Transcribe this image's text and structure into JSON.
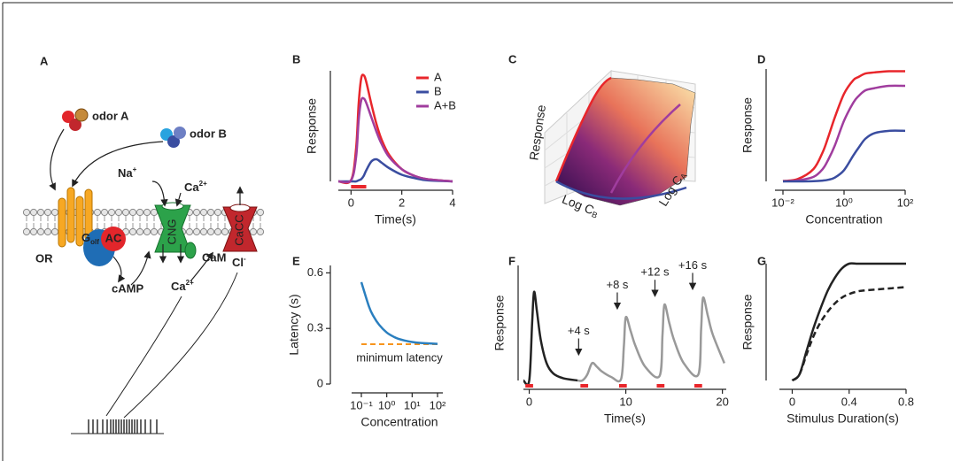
{
  "diagram": {
    "A": {
      "label": "A",
      "odor_a": "odor A",
      "odor_b": "odor B",
      "na": "Na",
      "na_sup": "+",
      "ca_top": "Ca",
      "ca_top_sup": "2+",
      "or": "OR",
      "golf": "G",
      "golf_sub": "olf",
      "ac": "AC",
      "cng": "CNG",
      "cam": "CaM",
      "cacc": "CaCC",
      "camp": "cAMP",
      "ca_bottom": "Ca",
      "ca_bottom_sup": "2+",
      "cl": "Cl",
      "cl_sup": "-"
    },
    "C": {
      "label": "C",
      "z_label": "Response",
      "x_label": "Log C",
      "x_sub": "B",
      "y_label": "Log C",
      "y_sub": "A"
    }
  },
  "chart_data": [
    {
      "type": "line",
      "label": "B",
      "xlabel": "Time(s)",
      "ylabel": "Response",
      "xlim": [
        -0.5,
        4
      ],
      "xticks": [
        0,
        2,
        4
      ],
      "ylim": [
        0,
        1
      ],
      "legend": "upper right",
      "x": [
        -0.5,
        0,
        0.2,
        0.3,
        0.4,
        0.5,
        0.6,
        0.8,
        1,
        1.2,
        1.5,
        2,
        2.5,
        3,
        4
      ],
      "series": [
        {
          "name": "A",
          "color": "#e8262b",
          "values": [
            0,
            0.01,
            0.3,
            0.7,
            0.93,
            0.96,
            0.9,
            0.7,
            0.52,
            0.38,
            0.24,
            0.11,
            0.05,
            0.02,
            0
          ]
        },
        {
          "name": "B",
          "color": "#3a4da0",
          "values": [
            0,
            0,
            0,
            0.01,
            0.02,
            0.05,
            0.1,
            0.18,
            0.2,
            0.17,
            0.12,
            0.06,
            0.03,
            0.01,
            0
          ]
        },
        {
          "name": "A+B",
          "color": "#a03d9e",
          "values": [
            0,
            0.01,
            0.22,
            0.55,
            0.73,
            0.75,
            0.71,
            0.58,
            0.45,
            0.34,
            0.22,
            0.11,
            0.05,
            0.02,
            0
          ]
        }
      ],
      "stimulus": {
        "color": "#e8262b",
        "starts": [
          0
        ],
        "duration": 0.6
      }
    },
    {
      "type": "line",
      "label": "D",
      "xlabel": "Concentration",
      "ylabel": "Response",
      "xscale": "log",
      "xlim": [
        0.01,
        100
      ],
      "xticks": [
        {
          "value": 0.01,
          "label": "10⁻²"
        },
        {
          "value": 1,
          "label": "10⁰"
        },
        {
          "value": 100,
          "label": "10²"
        }
      ],
      "ylim": [
        0,
        1
      ],
      "x": [
        0.01,
        0.03,
        0.1,
        0.2,
        0.3,
        0.5,
        1,
        2,
        3,
        5,
        10,
        30,
        100
      ],
      "series": [
        {
          "color": "#e8262b",
          "values": [
            0.004,
            0.02,
            0.11,
            0.26,
            0.39,
            0.57,
            0.78,
            0.9,
            0.93,
            0.96,
            0.97,
            0.98,
            0.98
          ]
        },
        {
          "color": "#a03d9e",
          "values": [
            0.001,
            0.008,
            0.04,
            0.11,
            0.19,
            0.32,
            0.54,
            0.7,
            0.76,
            0.81,
            0.83,
            0.85,
            0.85
          ]
        },
        {
          "color": "#3a4da0",
          "values": [
            0,
            0,
            0.002,
            0.007,
            0.014,
            0.034,
            0.1,
            0.23,
            0.3,
            0.38,
            0.43,
            0.45,
            0.45
          ]
        }
      ]
    },
    {
      "type": "line",
      "label": "E",
      "xlabel": "Concentration",
      "ylabel": "Latency (s)",
      "xscale": "log",
      "xlim": [
        0.1,
        100
      ],
      "xticks": [
        {
          "value": 0.1,
          "label": "10⁻¹"
        },
        {
          "value": 1,
          "label": "10⁰"
        },
        {
          "value": 10,
          "label": "10¹"
        },
        {
          "value": 100,
          "label": "10²"
        }
      ],
      "ylim": [
        0,
        0.64
      ],
      "yticks": [
        0,
        0.3,
        0.6
      ],
      "x": [
        0.1,
        0.2,
        0.3,
        0.5,
        1,
        2,
        3,
        5,
        10,
        20,
        50,
        100
      ],
      "series": [
        {
          "color": "#2a7fbf",
          "values": [
            0.55,
            0.418,
            0.366,
            0.32,
            0.278,
            0.253,
            0.243,
            0.235,
            0.227,
            0.222,
            0.219,
            0.217
          ]
        }
      ],
      "reference": {
        "label": "minimum latency",
        "value": 0.215,
        "color": "#f7941d",
        "style": "dashed"
      }
    },
    {
      "type": "line",
      "label": "F",
      "xlabel": "Time(s)",
      "ylabel": "Response",
      "xlim": [
        -0.6,
        20.4
      ],
      "xticks": [
        0,
        10,
        20
      ],
      "ylim": [
        0,
        1
      ],
      "series": [
        {
          "color": "#222222",
          "x": [
            -0.6,
            0,
            0.3,
            0.5,
            0.8,
            1.2,
            1.8,
            2.5,
            3.5,
            5
          ],
          "values": [
            0,
            0,
            0.5,
            0.77,
            0.6,
            0.35,
            0.15,
            0.06,
            0.02,
            0
          ]
        },
        {
          "color": "#999999",
          "x": [
            5,
            5.5,
            6,
            6.5,
            7,
            7.5,
            8.5,
            9.5,
            9.8,
            10,
            10.5,
            11,
            12,
            13.5,
            13.8,
            14,
            14.5,
            15,
            16,
            17.5,
            17.8,
            18,
            18.5,
            19,
            20.2
          ],
          "values": [
            0,
            0,
            0.05,
            0.15,
            0.12,
            0.08,
            0.03,
            0.01,
            0.3,
            0.55,
            0.43,
            0.3,
            0.12,
            0.04,
            0.4,
            0.66,
            0.5,
            0.35,
            0.15,
            0.05,
            0.45,
            0.72,
            0.56,
            0.4,
            0.15
          ]
        }
      ],
      "stimulus": {
        "color": "#e8262b",
        "starts": [
          -0.4,
          5.3,
          9.3,
          13.2,
          17.1
        ],
        "duration": 0.8
      },
      "annotations": [
        "+4 s",
        "+8 s",
        "+12 s",
        "+16 s"
      ]
    },
    {
      "type": "line",
      "label": "G",
      "xlabel": "Stimulus Duration(s)",
      "ylabel": "Response",
      "xlim": [
        -0.09,
        0.8
      ],
      "xticks": [
        0,
        0.4,
        0.8
      ],
      "ylim": [
        0,
        1
      ],
      "x": [
        0,
        0.05,
        0.1,
        0.15,
        0.2,
        0.25,
        0.3,
        0.35,
        0.4,
        0.45,
        0.5,
        0.6,
        0.7,
        0.8
      ],
      "series": [
        {
          "color": "#222222",
          "values": [
            0,
            0.05,
            0.25,
            0.45,
            0.62,
            0.77,
            0.88,
            0.96,
            1,
            1,
            1,
            1,
            1,
            1
          ]
        },
        {
          "color": "#222222",
          "style": "dashed",
          "values": [
            0,
            0.05,
            0.22,
            0.38,
            0.5,
            0.59,
            0.66,
            0.71,
            0.74,
            0.76,
            0.77,
            0.78,
            0.79,
            0.8
          ]
        }
      ]
    }
  ]
}
